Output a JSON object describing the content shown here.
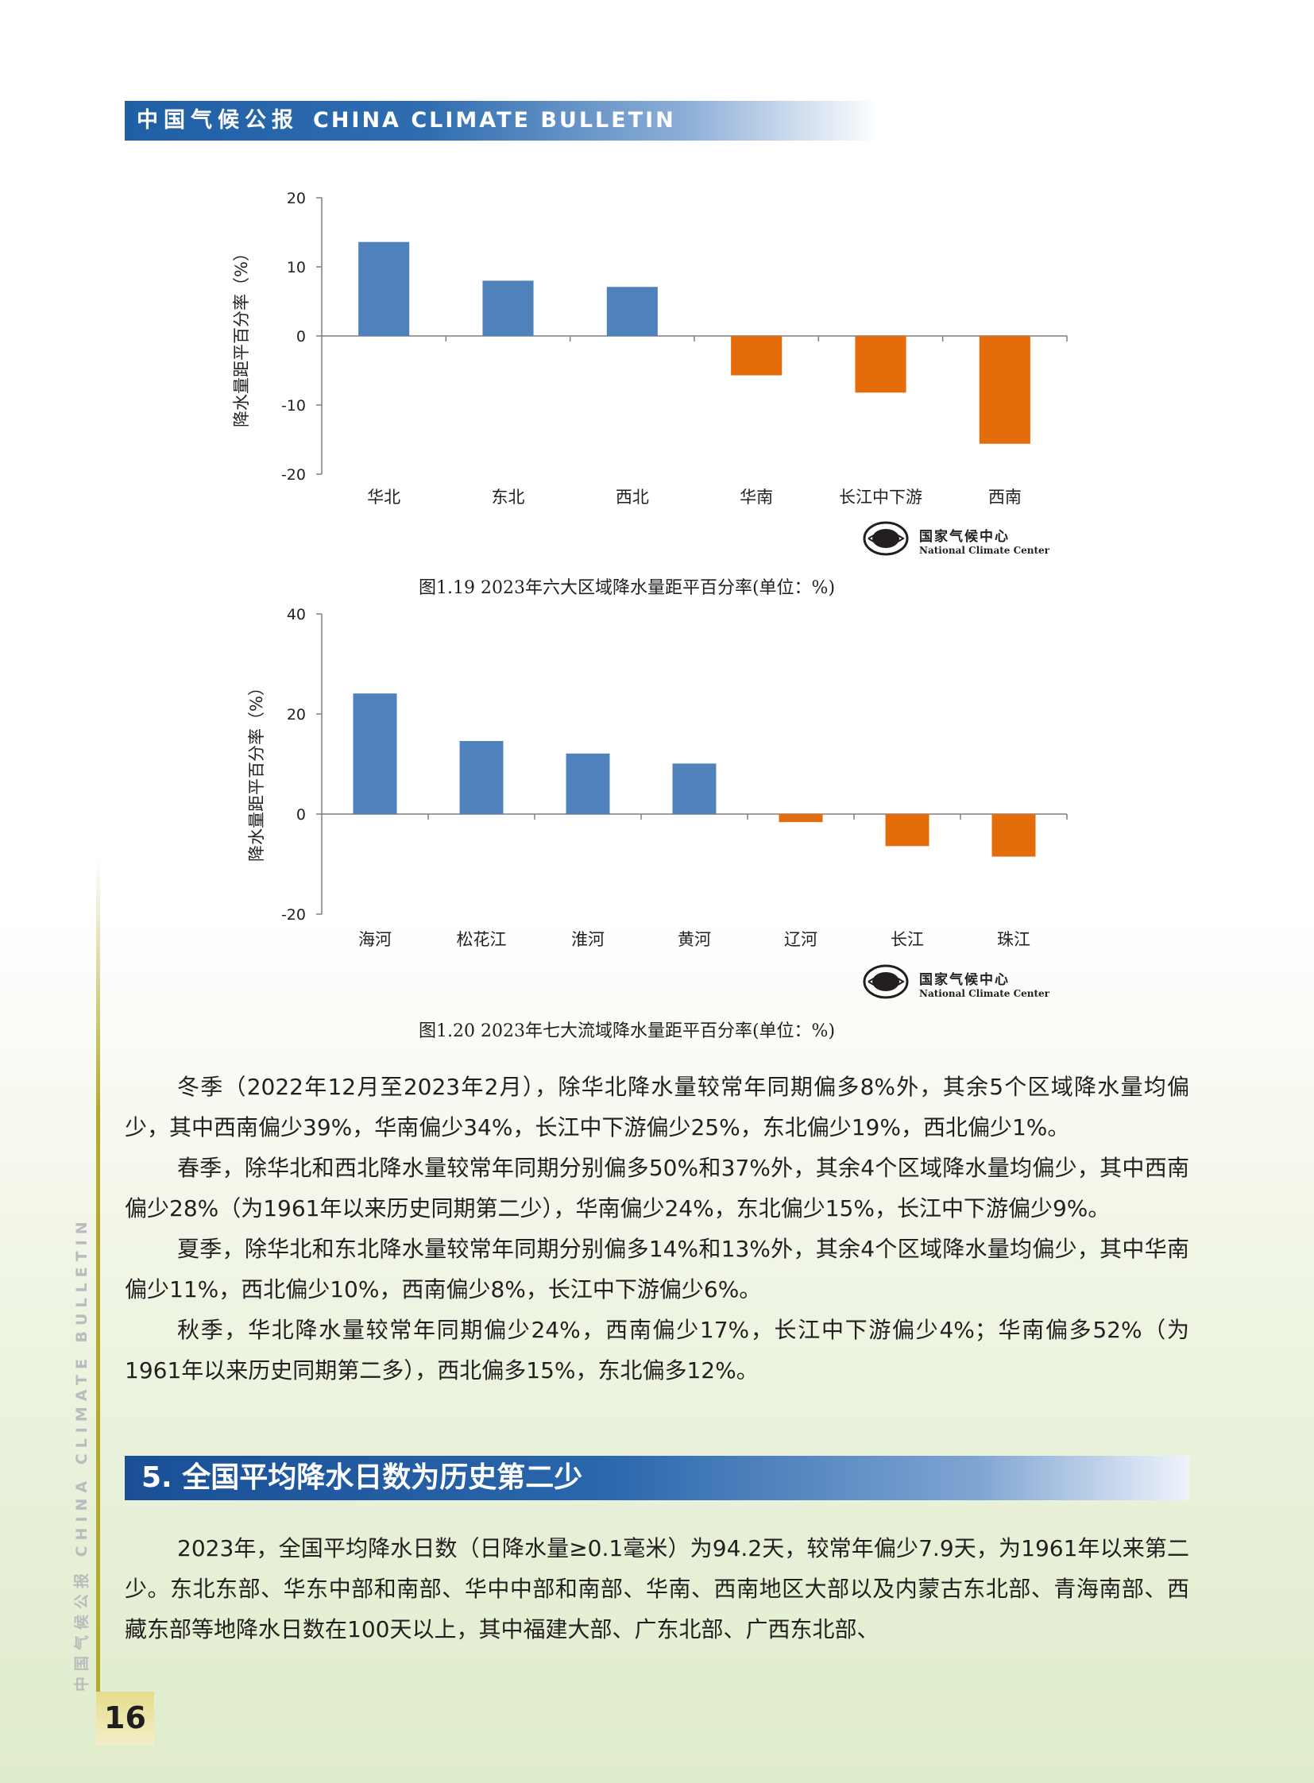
{
  "header": {
    "title_cn": "中国气候公报",
    "title_en": "CHINA CLIMATE BULLETIN"
  },
  "logo": {
    "name_cn": "国家气候中心",
    "name_en": "National Climate Center"
  },
  "chart_data": [
    {
      "type": "bar",
      "title": "",
      "caption": "图1.19  2023年六大区域降水量距平百分率(单位：%)",
      "ylabel": "降水量距平百分率（%）",
      "xlabel": "",
      "ylim": [
        -20,
        20
      ],
      "yticks": [
        20,
        10,
        0,
        -10,
        -20
      ],
      "categories": [
        "华北",
        "东北",
        "西北",
        "华南",
        "长江中下游",
        "西南"
      ],
      "values": [
        13.6,
        8.0,
        7.1,
        -5.7,
        -8.2,
        -15.6
      ],
      "colors": {
        "positive": "#4f81bd",
        "negative": "#e46c0a"
      },
      "grid": false
    },
    {
      "type": "bar",
      "title": "",
      "caption": "图1.20  2023年七大流域降水量距平百分率(单位：%)",
      "ylabel": "降水量距平百分率（%）",
      "xlabel": "",
      "ylim": [
        -20,
        40
      ],
      "yticks": [
        40,
        20,
        0,
        -20
      ],
      "categories": [
        "海河",
        "松花江",
        "淮河",
        "黄河",
        "辽河",
        "长江",
        "珠江"
      ],
      "values": [
        24.1,
        14.6,
        12.1,
        10.1,
        -1.6,
        -6.4,
        -8.5
      ],
      "colors": {
        "positive": "#4f81bd",
        "negative": "#e46c0a"
      },
      "grid": false
    }
  ],
  "paragraphs": [
    "冬季（2022年12月至2023年2月），除华北降水量较常年同期偏多8%外，其余5个区域降水量均偏少，其中西南偏少39%，华南偏少34%，长江中下游偏少25%，东北偏少19%，西北偏少1%。",
    "春季，除华北和西北降水量较常年同期分别偏多50%和37%外，其余4个区域降水量均偏少，其中西南偏少28%（为1961年以来历史同期第二少），华南偏少24%，东北偏少15%，长江中下游偏少9%。",
    "夏季，除华北和东北降水量较常年同期分别偏多14%和13%外，其余4个区域降水量均偏少，其中华南偏少11%，西北偏少10%，西南偏少8%，长江中下游偏少6%。",
    "秋季，华北降水量较常年同期偏少24%，西南偏少17%，长江中下游偏少4%；华南偏多52%（为1961年以来历史同期第二多），西北偏多15%，东北偏多12%。"
  ],
  "section": {
    "title": "5. 全国平均降水日数为历史第二少",
    "paragraph": "2023年，全国平均降水日数（日降水量≥0.1毫米）为94.2天，较常年偏少7.9天，为1961年以来第二少。东北东部、华东中部和南部、华中中部和南部、华南、西南地区大部以及内蒙古东北部、青海南部、西藏东部等地降水日数在100天以上，其中福建大部、广东北部、广西东北部、"
  },
  "sidebar_text": "中国气候公报  CHINA CLIMATE BULLETIN",
  "page_number": "16"
}
